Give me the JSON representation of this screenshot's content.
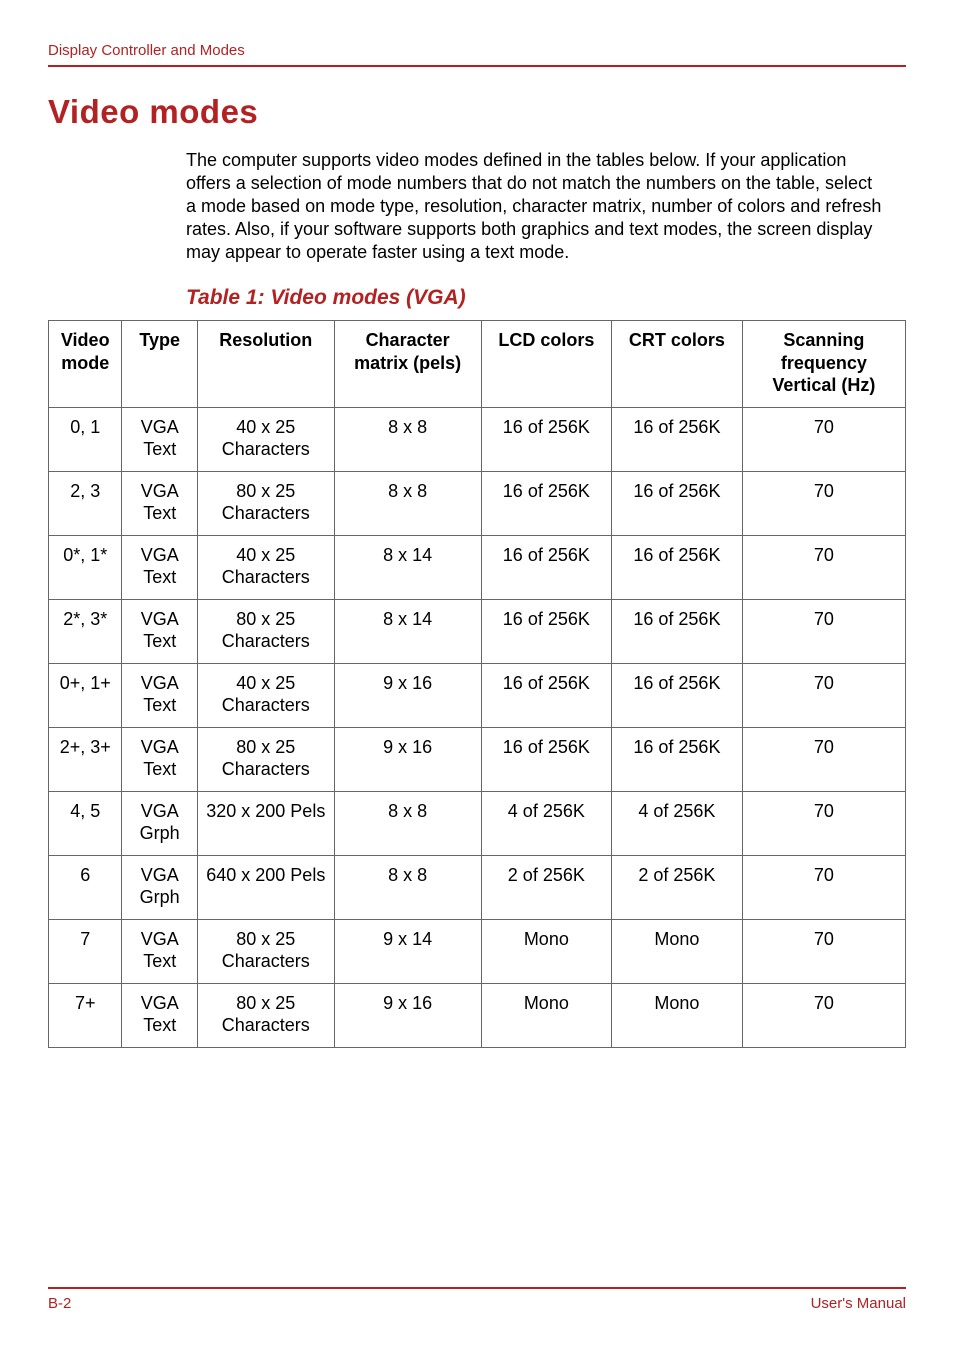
{
  "header": {
    "section": "Display Controller and Modes"
  },
  "heading": "Video modes",
  "paragraph": "The computer supports video modes defined in the tables below. If your application offers a selection of mode numbers that do not match the numbers on the table, select a mode based on mode type, resolution, character matrix, number of colors and refresh rates. Also, if your software supports both graphics and text modes, the screen display may appear to operate faster using a text mode.",
  "table": {
    "caption": "Table 1: Video modes (VGA)",
    "columns": [
      "Video mode",
      "Type",
      "Resolution",
      "Character matrix (pels)",
      "LCD colors",
      "CRT colors",
      "Scanning frequency Vertical (Hz)"
    ],
    "rows": [
      [
        "0, 1",
        "VGA Text",
        "40 x 25 Characters",
        "8 x 8",
        "16 of 256K",
        "16 of 256K",
        "70"
      ],
      [
        "2, 3",
        "VGA Text",
        "80 x 25 Characters",
        "8 x 8",
        "16 of 256K",
        "16 of 256K",
        "70"
      ],
      [
        "0*, 1*",
        "VGA Text",
        "40 x 25 Characters",
        "8 x 14",
        "16 of 256K",
        "16 of 256K",
        "70"
      ],
      [
        "2*, 3*",
        "VGA Text",
        "80 x 25 Characters",
        "8 x 14",
        "16 of 256K",
        "16 of 256K",
        "70"
      ],
      [
        "0+, 1+",
        "VGA Text",
        "40 x 25 Characters",
        "9 x 16",
        "16 of 256K",
        "16 of 256K",
        "70"
      ],
      [
        "2+, 3+",
        "VGA Text",
        "80 x 25 Characters",
        "9 x 16",
        "16 of 256K",
        "16 of 256K",
        "70"
      ],
      [
        "4, 5",
        "VGA Grph",
        "320 x 200 Pels",
        "8 x 8",
        "4 of 256K",
        "4 of 256K",
        "70"
      ],
      [
        "6",
        "VGA Grph",
        "640 x 200 Pels",
        "8 x 8",
        "2 of 256K",
        "2 of 256K",
        "70"
      ],
      [
        "7",
        "VGA Text",
        "80 x 25 Characters",
        "9 x 14",
        "Mono",
        "Mono",
        "70"
      ],
      [
        "7+",
        "VGA Text",
        "80 x 25 Characters",
        "9 x 16",
        "Mono",
        "Mono",
        "70"
      ]
    ]
  },
  "footer": {
    "page": "B-2",
    "doc": "User's Manual"
  },
  "colors": {
    "accent": "#b22222",
    "border": "#666666",
    "text": "#000000",
    "background": "#ffffff"
  }
}
